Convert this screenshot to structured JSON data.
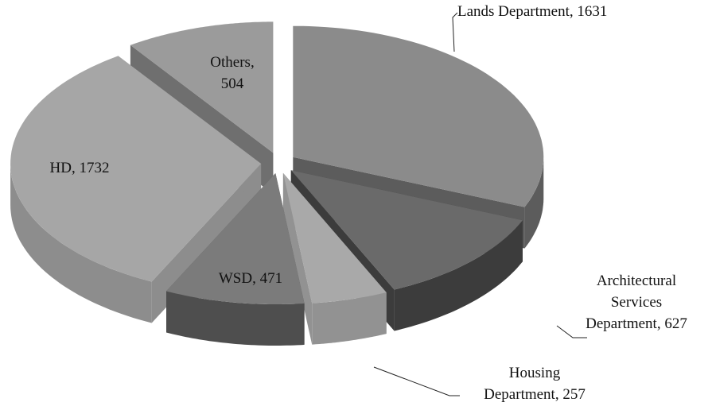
{
  "chart_data": {
    "type": "pie3d",
    "categories": [
      "Lands Department",
      "Architectural Services Department",
      "Housing Department",
      "WSD",
      "HD",
      "Others"
    ],
    "values": [
      1631,
      627,
      257,
      471,
      1732,
      504
    ],
    "value_labels": [
      "Lands Department, 1631",
      "Architectural Services Department, 627",
      "Housing Department, 257",
      "WSD, 471",
      "HD, 1732",
      "Others, 504"
    ],
    "colors": [
      "#8b8b8b",
      "#6a6a6a",
      "#a9a9a9",
      "#7b7b7b",
      "#a6a6a6",
      "#9b9b9b"
    ],
    "side_colors": [
      "#5c5c5c",
      "#3c3c3c",
      "#929292",
      "#4e4e4e",
      "#8d8d8d",
      "#6f6f6f"
    ]
  }
}
